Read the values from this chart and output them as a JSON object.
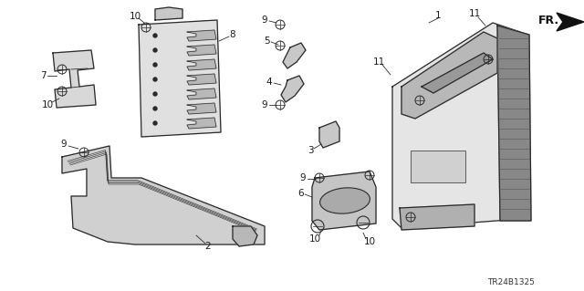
{
  "background_color": "#ffffff",
  "diagram_id": "TR24B1325",
  "fr_label": "FR.",
  "line_color": "#2a2a2a",
  "text_color": "#1a1a1a",
  "label_fontsize": 7.5
}
